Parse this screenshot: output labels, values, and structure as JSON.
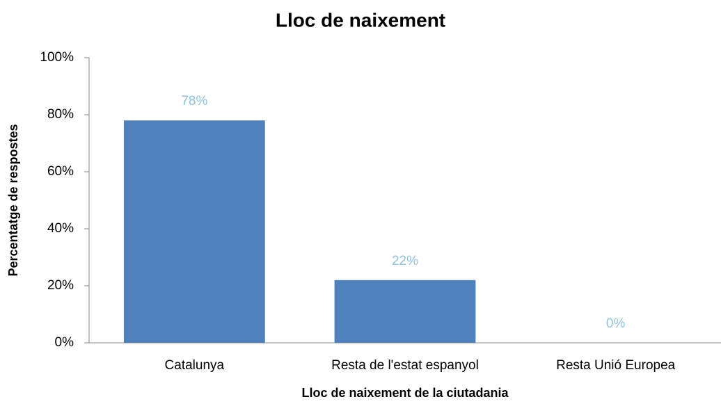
{
  "chart_data": {
    "type": "bar",
    "title": "Lloc de naixement",
    "x_label": "Lloc de naixement de la ciutadania",
    "y_label": "Percentatge de respostes",
    "categories": [
      "Catalunya",
      "Resta de l'estat espanyol",
      "Resta Unió Europea"
    ],
    "values": [
      78,
      22,
      0
    ],
    "value_labels": [
      "78%",
      "22%",
      "0%"
    ],
    "color": "#4f81bd",
    "ylim": [
      0,
      100
    ],
    "yticks": [
      {
        "value": 0,
        "label": "0%"
      },
      {
        "value": 20,
        "label": "20%"
      },
      {
        "value": 40,
        "label": "40%"
      },
      {
        "value": 60,
        "label": "60%"
      },
      {
        "value": 80,
        "label": "80%"
      },
      {
        "value": 100,
        "label": "100%"
      }
    ],
    "grid": false
  }
}
